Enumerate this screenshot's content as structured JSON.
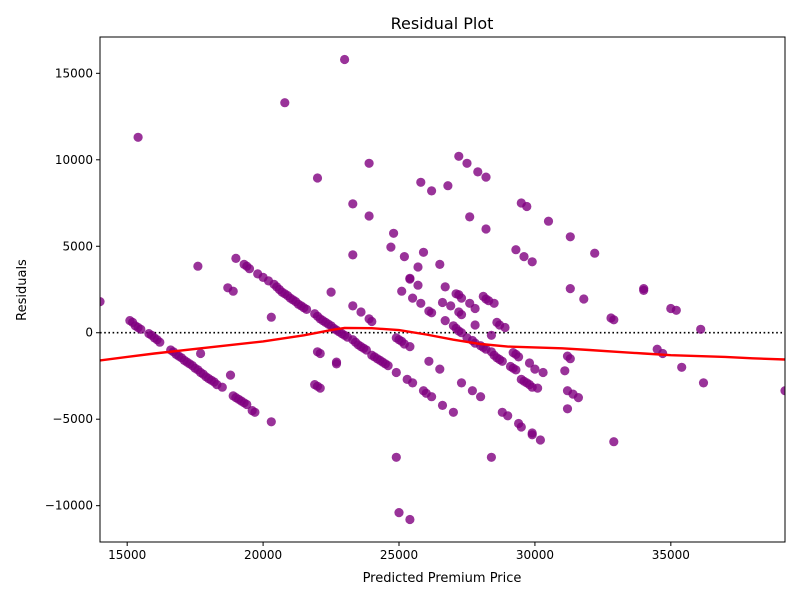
{
  "chart_data": {
    "type": "scatter",
    "title": "Residual Plot",
    "xlabel": "Predicted Premium Price",
    "ylabel": "Residuals",
    "xlim": [
      14000,
      39200
    ],
    "ylim": [
      -12100,
      17100
    ],
    "xticks": [
      15000,
      20000,
      25000,
      30000,
      35000
    ],
    "xtick_labels": [
      "15000",
      "20000",
      "25000",
      "30000",
      "35000"
    ],
    "yticks": [
      -10000,
      -5000,
      0,
      5000,
      10000,
      15000
    ],
    "ytick_labels": [
      "−10000",
      "−5000",
      "0",
      "5000",
      "10000",
      "15000"
    ],
    "grid": false,
    "colors": {
      "points": "#800080",
      "lowess": "#ff0000",
      "zero_line": "#000000"
    },
    "reference_line": {
      "y": 0,
      "style": "dotted"
    },
    "points": [
      [
        14000,
        1800
      ],
      [
        15400,
        11300
      ],
      [
        15100,
        700
      ],
      [
        15200,
        600
      ],
      [
        15300,
        400
      ],
      [
        15400,
        300
      ],
      [
        15500,
        200
      ],
      [
        15800,
        -50
      ],
      [
        15900,
        -150
      ],
      [
        16000,
        -300
      ],
      [
        16100,
        -400
      ],
      [
        16200,
        -550
      ],
      [
        16600,
        -1000
      ],
      [
        16700,
        -1100
      ],
      [
        16800,
        -1250
      ],
      [
        16900,
        -1350
      ],
      [
        17000,
        -1450
      ],
      [
        17100,
        -1600
      ],
      [
        17200,
        -1700
      ],
      [
        17300,
        -1800
      ],
      [
        17400,
        -1900
      ],
      [
        17500,
        -2050
      ],
      [
        17600,
        -2150
      ],
      [
        17700,
        -2300
      ],
      [
        17800,
        -2400
      ],
      [
        17900,
        -2550
      ],
      [
        18000,
        -2650
      ],
      [
        18100,
        -2750
      ],
      [
        18200,
        -2850
      ],
      [
        18300,
        -3000
      ],
      [
        18500,
        -3150
      ],
      [
        17600,
        3850
      ],
      [
        17700,
        -1200
      ],
      [
        18700,
        2600
      ],
      [
        18900,
        2400
      ],
      [
        18800,
        -2450
      ],
      [
        18900,
        -3650
      ],
      [
        19000,
        -3750
      ],
      [
        19100,
        -3850
      ],
      [
        19200,
        -3950
      ],
      [
        19300,
        -4050
      ],
      [
        19400,
        -4150
      ],
      [
        19600,
        -4500
      ],
      [
        19700,
        -4600
      ],
      [
        20300,
        -5150
      ],
      [
        19000,
        4300
      ],
      [
        19300,
        3950
      ],
      [
        19400,
        3850
      ],
      [
        19500,
        3700
      ],
      [
        19800,
        3400
      ],
      [
        20000,
        3200
      ],
      [
        20200,
        3000
      ],
      [
        20400,
        2800
      ],
      [
        20500,
        2650
      ],
      [
        20600,
        2500
      ],
      [
        20700,
        2350
      ],
      [
        20800,
        2250
      ],
      [
        20900,
        2150
      ],
      [
        21000,
        2000
      ],
      [
        21100,
        1900
      ],
      [
        21200,
        1800
      ],
      [
        21300,
        1650
      ],
      [
        21400,
        1550
      ],
      [
        21500,
        1450
      ],
      [
        21600,
        1350
      ],
      [
        20300,
        900
      ],
      [
        20800,
        13300
      ],
      [
        21900,
        1100
      ],
      [
        22000,
        950
      ],
      [
        22100,
        800
      ],
      [
        22200,
        700
      ],
      [
        22300,
        600
      ],
      [
        22400,
        500
      ],
      [
        22500,
        400
      ],
      [
        22600,
        250
      ],
      [
        22700,
        150
      ],
      [
        22800,
        50
      ],
      [
        22900,
        -50
      ],
      [
        23000,
        -150
      ],
      [
        23100,
        -250
      ],
      [
        23300,
        -400
      ],
      [
        23400,
        -550
      ],
      [
        23500,
        -700
      ],
      [
        23600,
        -800
      ],
      [
        23700,
        -900
      ],
      [
        23800,
        -1000
      ],
      [
        24000,
        -1300
      ],
      [
        24100,
        -1400
      ],
      [
        24200,
        -1500
      ],
      [
        24300,
        -1600
      ],
      [
        24400,
        -1700
      ],
      [
        24500,
        -1800
      ],
      [
        24600,
        -1900
      ],
      [
        23000,
        15800
      ],
      [
        22000,
        8950
      ],
      [
        23300,
        7450
      ],
      [
        23300,
        4500
      ],
      [
        23900,
        9800
      ],
      [
        23900,
        6750
      ],
      [
        22500,
        2350
      ],
      [
        23300,
        1550
      ],
      [
        23600,
        1200
      ],
      [
        23900,
        800
      ],
      [
        24000,
        650
      ],
      [
        22000,
        -1100
      ],
      [
        22100,
        -1200
      ],
      [
        22700,
        -1700
      ],
      [
        22700,
        -1800
      ],
      [
        21900,
        -3000
      ],
      [
        22000,
        -3100
      ],
      [
        22100,
        -3200
      ],
      [
        24700,
        4950
      ],
      [
        24800,
        5750
      ],
      [
        25100,
        2400
      ],
      [
        25200,
        4400
      ],
      [
        25400,
        3150
      ],
      [
        25400,
        3100
      ],
      [
        25500,
        2000
      ],
      [
        25700,
        3800
      ],
      [
        25700,
        2750
      ],
      [
        25800,
        8700
      ],
      [
        25900,
        4650
      ],
      [
        25800,
        1700
      ],
      [
        26100,
        1250
      ],
      [
        26200,
        1150
      ],
      [
        26200,
        8200
      ],
      [
        26500,
        3950
      ],
      [
        26600,
        1750
      ],
      [
        26700,
        2650
      ],
      [
        26800,
        8500
      ],
      [
        26700,
        700
      ],
      [
        26900,
        1550
      ],
      [
        27000,
        400
      ],
      [
        27100,
        250
      ],
      [
        27200,
        100
      ],
      [
        27300,
        0
      ],
      [
        27200,
        2200
      ],
      [
        27100,
        2250
      ],
      [
        27300,
        2000
      ],
      [
        27200,
        1200
      ],
      [
        27300,
        1050
      ],
      [
        27600,
        1700
      ],
      [
        27800,
        1400
      ],
      [
        27200,
        10200
      ],
      [
        27500,
        9800
      ],
      [
        27900,
        9300
      ],
      [
        28200,
        9000
      ],
      [
        27600,
        6700
      ],
      [
        28200,
        6000
      ],
      [
        27800,
        450
      ],
      [
        27500,
        -300
      ],
      [
        27700,
        -450
      ],
      [
        27800,
        -600
      ],
      [
        28000,
        -750
      ],
      [
        28100,
        -850
      ],
      [
        28200,
        -950
      ],
      [
        28400,
        -1100
      ],
      [
        28500,
        -1300
      ],
      [
        28600,
        -1450
      ],
      [
        28700,
        -1550
      ],
      [
        28800,
        -1650
      ],
      [
        28100,
        2100
      ],
      [
        28200,
        1950
      ],
      [
        28300,
        1850
      ],
      [
        28500,
        1700
      ],
      [
        28400,
        -150
      ],
      [
        28600,
        600
      ],
      [
        28700,
        450
      ],
      [
        28900,
        300
      ],
      [
        29100,
        -1950
      ],
      [
        29200,
        -2050
      ],
      [
        29300,
        -2150
      ],
      [
        29500,
        -2700
      ],
      [
        29600,
        -2800
      ],
      [
        29700,
        -2900
      ],
      [
        29800,
        -3000
      ],
      [
        29900,
        -3150
      ],
      [
        30100,
        -3200
      ],
      [
        29200,
        -1150
      ],
      [
        29300,
        -1250
      ],
      [
        29400,
        -1400
      ],
      [
        29800,
        -1750
      ],
      [
        30000,
        -2100
      ],
      [
        30300,
        -2300
      ],
      [
        29500,
        7500
      ],
      [
        29700,
        7300
      ],
      [
        30500,
        6450
      ],
      [
        29300,
        4800
      ],
      [
        29600,
        4400
      ],
      [
        29900,
        4100
      ],
      [
        31300,
        5550
      ],
      [
        32200,
        4600
      ],
      [
        31300,
        2550
      ],
      [
        31800,
        1950
      ],
      [
        32800,
        850
      ],
      [
        32900,
        750
      ],
      [
        34000,
        2550
      ],
      [
        34000,
        2450
      ],
      [
        35000,
        1400
      ],
      [
        35200,
        1300
      ],
      [
        36100,
        200
      ],
      [
        31100,
        -2200
      ],
      [
        31200,
        -1350
      ],
      [
        31300,
        -1500
      ],
      [
        31200,
        -3350
      ],
      [
        31400,
        -3550
      ],
      [
        31600,
        -3750
      ],
      [
        31200,
        -4400
      ],
      [
        32900,
        -6300
      ],
      [
        34500,
        -950
      ],
      [
        34700,
        -1200
      ],
      [
        35400,
        -2000
      ],
      [
        36200,
        -2900
      ],
      [
        39200,
        -3350
      ],
      [
        24900,
        -2300
      ],
      [
        25300,
        -2700
      ],
      [
        25500,
        -2900
      ],
      [
        25900,
        -3350
      ],
      [
        26000,
        -3500
      ],
      [
        26200,
        -3700
      ],
      [
        26600,
        -4200
      ],
      [
        27000,
        -4600
      ],
      [
        27300,
        -2900
      ],
      [
        27700,
        -3350
      ],
      [
        28000,
        -3700
      ],
      [
        28800,
        -4600
      ],
      [
        29000,
        -4800
      ],
      [
        29400,
        -5250
      ],
      [
        29500,
        -5450
      ],
      [
        29900,
        -5800
      ],
      [
        29900,
        -5900
      ],
      [
        30200,
        -6200
      ],
      [
        24900,
        -7200
      ],
      [
        28400,
        -7200
      ],
      [
        25000,
        -10400
      ],
      [
        25400,
        -10800
      ],
      [
        24900,
        -300
      ],
      [
        25000,
        -400
      ],
      [
        25100,
        -500
      ],
      [
        25200,
        -650
      ],
      [
        25400,
        -800
      ],
      [
        26100,
        -1650
      ],
      [
        26500,
        -2100
      ]
    ],
    "lowess": [
      [
        14000,
        -1600
      ],
      [
        16000,
        -1200
      ],
      [
        18000,
        -850
      ],
      [
        20000,
        -500
      ],
      [
        21500,
        -150
      ],
      [
        22500,
        150
      ],
      [
        23000,
        280
      ],
      [
        24000,
        260
      ],
      [
        25000,
        150
      ],
      [
        26000,
        -100
      ],
      [
        27000,
        -400
      ],
      [
        28000,
        -650
      ],
      [
        29000,
        -800
      ],
      [
        30000,
        -850
      ],
      [
        31000,
        -900
      ],
      [
        32000,
        -1000
      ],
      [
        33000,
        -1100
      ],
      [
        34000,
        -1200
      ],
      [
        35000,
        -1300
      ],
      [
        36000,
        -1350
      ],
      [
        37000,
        -1400
      ],
      [
        38000,
        -1480
      ],
      [
        39200,
        -1550
      ]
    ]
  }
}
